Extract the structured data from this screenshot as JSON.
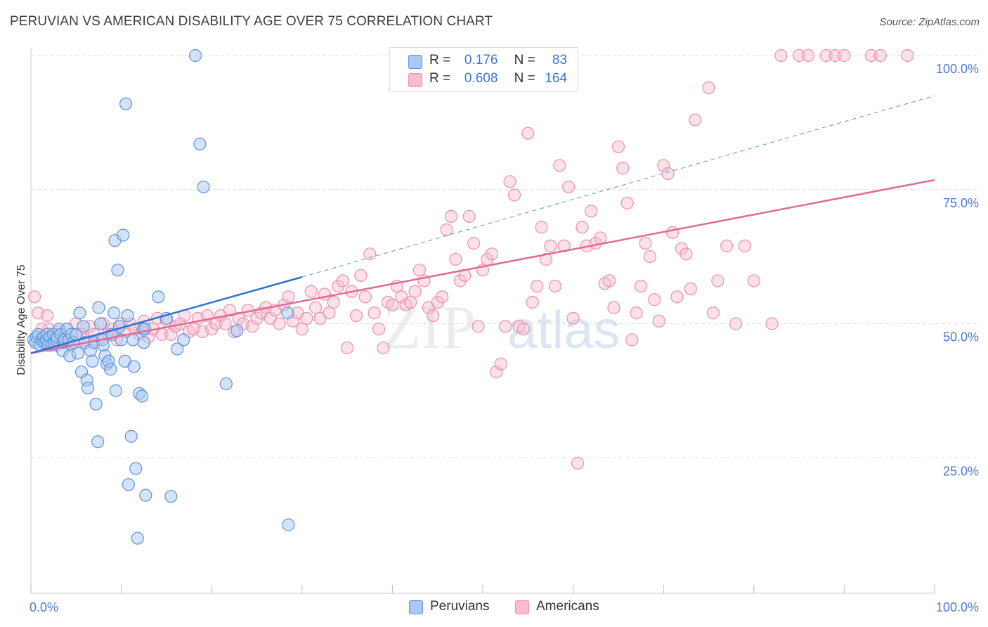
{
  "header": {
    "title": "PERUVIAN VS AMERICAN DISABILITY AGE OVER 75 CORRELATION CHART",
    "source": "Source: ZipAtlas.com"
  },
  "watermark": {
    "zip": "ZIP",
    "atlas": "atlas"
  },
  "legend": {
    "peruvians": {
      "r_label": "R =",
      "r_value": "0.176",
      "n_label": "N =",
      "n_value": "83"
    },
    "americans": {
      "r_label": "R =",
      "r_value": "0.608",
      "n_label": "N =",
      "n_value": "164"
    }
  },
  "bottom_legend": {
    "peruvians": "Peruvians",
    "americans": "Americans"
  },
  "colors": {
    "peruvians_fill": "#a9c8f2",
    "peruvians_stroke": "#5b93de",
    "peruvians_line": "#2f72d1",
    "americans_fill": "#f7bccd",
    "americans_stroke": "#ec8fab",
    "americans_line": "#e2689a",
    "axis_text": "#4a7bd0",
    "grid": "#dedede"
  },
  "chart_data": {
    "type": "scatter",
    "title": "PERUVIAN VS AMERICAN DISABILITY AGE OVER 75 CORRELATION CHART",
    "xlabel": "",
    "ylabel": "Disability Age Over 75",
    "xlim": [
      0,
      100
    ],
    "ylim": [
      0,
      105
    ],
    "x_tick_labels": [
      "0.0%",
      "100.0%"
    ],
    "y_ticks": [
      25,
      50,
      75,
      100
    ],
    "y_tick_labels": [
      "25.0%",
      "50.0%",
      "75.0%",
      "100.0%"
    ],
    "grid": true,
    "series": [
      {
        "name": "Peruvians",
        "trend": {
          "x": [
            0,
            30
          ],
          "y": [
            44.5,
            58.7
          ],
          "dashed_extension": {
            "x": [
              30,
              100
            ],
            "y": [
              58.7,
              92.5
            ]
          }
        },
        "points": [
          [
            0.3,
            47
          ],
          [
            0.5,
            46.5
          ],
          [
            0.6,
            47.5
          ],
          [
            0.8,
            48
          ],
          [
            1.0,
            46
          ],
          [
            1.2,
            47
          ],
          [
            1.4,
            47.5
          ],
          [
            1.5,
            46.5
          ],
          [
            1.7,
            47
          ],
          [
            1.8,
            48
          ],
          [
            1.9,
            46
          ],
          [
            2.1,
            47.5
          ],
          [
            2.3,
            46
          ],
          [
            2.5,
            48
          ],
          [
            2.6,
            46.5
          ],
          [
            2.8,
            47
          ],
          [
            2.9,
            47.5
          ],
          [
            3.1,
            49
          ],
          [
            3.3,
            48
          ],
          [
            3.5,
            45
          ],
          [
            3.6,
            46.5
          ],
          [
            3.7,
            47
          ],
          [
            4.0,
            49
          ],
          [
            4.2,
            47
          ],
          [
            4.3,
            44
          ],
          [
            4.5,
            48
          ],
          [
            4.7,
            46.5
          ],
          [
            5.0,
            48
          ],
          [
            5.2,
            44.5
          ],
          [
            5.4,
            52
          ],
          [
            5.6,
            41
          ],
          [
            5.8,
            49.5
          ],
          [
            6.0,
            46.5
          ],
          [
            6.2,
            39.5
          ],
          [
            6.3,
            38
          ],
          [
            6.6,
            45
          ],
          [
            6.8,
            43
          ],
          [
            7.0,
            46.5
          ],
          [
            7.2,
            35
          ],
          [
            7.4,
            28
          ],
          [
            7.5,
            53
          ],
          [
            7.7,
            50
          ],
          [
            7.9,
            47
          ],
          [
            8.0,
            46
          ],
          [
            8.2,
            44
          ],
          [
            8.4,
            42.5
          ],
          [
            8.6,
            43
          ],
          [
            8.8,
            41.5
          ],
          [
            9.0,
            48
          ],
          [
            9.2,
            52
          ],
          [
            9.3,
            65.5
          ],
          [
            9.4,
            37.5
          ],
          [
            9.6,
            60
          ],
          [
            9.8,
            49.5
          ],
          [
            10.0,
            47
          ],
          [
            10.2,
            66.5
          ],
          [
            10.4,
            43
          ],
          [
            10.5,
            91
          ],
          [
            10.7,
            51.5
          ],
          [
            10.8,
            20
          ],
          [
            11.1,
            29
          ],
          [
            11.3,
            47
          ],
          [
            11.4,
            42
          ],
          [
            11.6,
            23
          ],
          [
            11.8,
            10
          ],
          [
            12.0,
            37
          ],
          [
            12.3,
            36.5
          ],
          [
            12.4,
            49
          ],
          [
            12.5,
            46.5
          ],
          [
            12.6,
            49
          ],
          [
            12.7,
            18
          ],
          [
            14.1,
            55
          ],
          [
            15.0,
            51
          ],
          [
            15.5,
            17.8
          ],
          [
            16.2,
            45.3
          ],
          [
            16.9,
            47
          ],
          [
            18.2,
            100
          ],
          [
            18.7,
            83.5
          ],
          [
            19.1,
            75.5
          ],
          [
            21.6,
            38.8
          ],
          [
            22.8,
            48.7
          ],
          [
            28.4,
            52
          ],
          [
            28.5,
            12.5
          ]
        ]
      },
      {
        "name": "Americans",
        "trend": {
          "x": [
            0,
            100
          ],
          "y": [
            44.5,
            76.8
          ]
        },
        "points": [
          [
            0.4,
            55
          ],
          [
            0.8,
            52
          ],
          [
            1.2,
            49
          ],
          [
            1.5,
            47
          ],
          [
            1.8,
            51.5
          ],
          [
            2.0,
            49
          ],
          [
            2.3,
            47
          ],
          [
            2.6,
            48
          ],
          [
            2.8,
            46
          ],
          [
            3.1,
            48.5
          ],
          [
            3.5,
            47
          ],
          [
            4.0,
            49
          ],
          [
            4.5,
            46
          ],
          [
            5.0,
            50
          ],
          [
            5.5,
            48
          ],
          [
            6.0,
            47
          ],
          [
            6.5,
            49.5
          ],
          [
            7.0,
            48
          ],
          [
            7.5,
            47
          ],
          [
            8.0,
            50
          ],
          [
            8.5,
            48
          ],
          [
            9.0,
            49
          ],
          [
            9.5,
            47
          ],
          [
            10.0,
            50
          ],
          [
            10.5,
            48.5
          ],
          [
            11.0,
            50
          ],
          [
            11.5,
            49
          ],
          [
            12.0,
            48
          ],
          [
            12.5,
            50.5
          ],
          [
            13.0,
            47.5
          ],
          [
            13.5,
            49
          ],
          [
            14.0,
            51
          ],
          [
            14.5,
            48
          ],
          [
            15.0,
            50.5
          ],
          [
            15.5,
            48
          ],
          [
            16.0,
            49.5
          ],
          [
            16.5,
            50
          ],
          [
            17.0,
            51.5
          ],
          [
            17.5,
            48.5
          ],
          [
            18.0,
            49
          ],
          [
            18.5,
            51
          ],
          [
            19.0,
            48.5
          ],
          [
            19.5,
            51.5
          ],
          [
            20.0,
            49
          ],
          [
            20.5,
            50
          ],
          [
            21.0,
            51.5
          ],
          [
            21.5,
            50
          ],
          [
            22.0,
            52.5
          ],
          [
            22.5,
            48.5
          ],
          [
            23.0,
            51
          ],
          [
            23.5,
            50
          ],
          [
            24.0,
            52.5
          ],
          [
            24.5,
            49.5
          ],
          [
            25.0,
            51
          ],
          [
            25.5,
            52
          ],
          [
            26.0,
            53
          ],
          [
            26.5,
            51
          ],
          [
            27.0,
            52.5
          ],
          [
            27.5,
            50
          ],
          [
            28.0,
            53.5
          ],
          [
            28.5,
            55
          ],
          [
            29.0,
            50.5
          ],
          [
            29.5,
            52
          ],
          [
            30.0,
            49
          ],
          [
            30.5,
            51
          ],
          [
            31.0,
            56
          ],
          [
            31.5,
            53
          ],
          [
            32.0,
            51
          ],
          [
            32.5,
            55.5
          ],
          [
            33.0,
            52
          ],
          [
            33.5,
            54
          ],
          [
            34.0,
            57
          ],
          [
            34.5,
            58
          ],
          [
            35.0,
            45.5
          ],
          [
            35.5,
            56
          ],
          [
            36.0,
            51.5
          ],
          [
            36.5,
            59
          ],
          [
            37.0,
            55
          ],
          [
            37.5,
            63
          ],
          [
            38.0,
            52
          ],
          [
            38.5,
            49
          ],
          [
            39.0,
            45.5
          ],
          [
            39.5,
            54
          ],
          [
            40.0,
            53.5
          ],
          [
            40.5,
            57
          ],
          [
            41.0,
            55
          ],
          [
            41.5,
            53.5
          ],
          [
            42.0,
            54
          ],
          [
            42.5,
            56
          ],
          [
            43.0,
            60
          ],
          [
            43.5,
            58
          ],
          [
            44.0,
            53
          ],
          [
            44.5,
            51.5
          ],
          [
            45.0,
            54
          ],
          [
            45.5,
            55
          ],
          [
            46.0,
            67.5
          ],
          [
            46.5,
            70
          ],
          [
            47.0,
            62
          ],
          [
            47.5,
            58
          ],
          [
            48.0,
            59
          ],
          [
            48.5,
            70
          ],
          [
            49.0,
            65
          ],
          [
            49.5,
            49.5
          ],
          [
            50.0,
            60
          ],
          [
            50.5,
            62
          ],
          [
            51.0,
            63
          ],
          [
            51.5,
            41
          ],
          [
            52.0,
            42.5
          ],
          [
            52.5,
            49.5
          ],
          [
            53.0,
            76.5
          ],
          [
            53.5,
            74
          ],
          [
            54.0,
            49.5
          ],
          [
            54.5,
            49
          ],
          [
            55.0,
            85.5
          ],
          [
            55.5,
            54
          ],
          [
            56.0,
            57
          ],
          [
            56.5,
            68
          ],
          [
            57.0,
            62
          ],
          [
            57.5,
            64.5
          ],
          [
            58.0,
            57
          ],
          [
            58.5,
            79.5
          ],
          [
            59.0,
            64.5
          ],
          [
            59.5,
            75.5
          ],
          [
            60.0,
            51
          ],
          [
            60.5,
            24
          ],
          [
            61.0,
            68
          ],
          [
            61.5,
            64.5
          ],
          [
            62.0,
            71
          ],
          [
            62.5,
            65
          ],
          [
            63.0,
            66
          ],
          [
            63.5,
            57.5
          ],
          [
            64.0,
            58
          ],
          [
            64.5,
            53
          ],
          [
            65.0,
            83
          ],
          [
            65.5,
            79
          ],
          [
            66.0,
            72.5
          ],
          [
            66.5,
            47
          ],
          [
            67.0,
            52
          ],
          [
            67.5,
            57
          ],
          [
            68.0,
            65
          ],
          [
            68.5,
            62.5
          ],
          [
            69.0,
            54.5
          ],
          [
            69.5,
            50.5
          ],
          [
            70.0,
            79.5
          ],
          [
            70.5,
            78
          ],
          [
            71.0,
            67
          ],
          [
            71.5,
            55
          ],
          [
            72.0,
            64
          ],
          [
            72.5,
            63
          ],
          [
            73.0,
            56.5
          ],
          [
            73.5,
            88
          ],
          [
            75.0,
            94
          ],
          [
            75.5,
            52
          ],
          [
            76.0,
            58
          ],
          [
            77.0,
            64.5
          ],
          [
            78.0,
            50
          ],
          [
            79.0,
            64.5
          ],
          [
            80.0,
            58
          ],
          [
            82.0,
            50
          ],
          [
            83.0,
            100
          ],
          [
            85.0,
            100
          ],
          [
            86.0,
            100
          ],
          [
            88.0,
            100
          ],
          [
            89.0,
            100
          ],
          [
            90.0,
            100
          ],
          [
            93.0,
            100
          ],
          [
            94.0,
            100
          ],
          [
            97.0,
            100
          ]
        ]
      }
    ]
  }
}
